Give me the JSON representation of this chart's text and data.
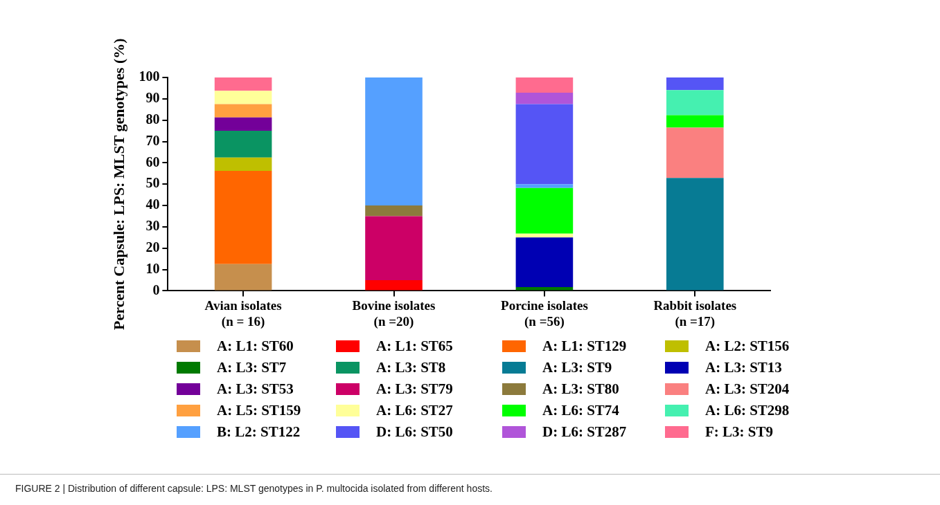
{
  "chart_data": {
    "type": "bar",
    "stacked": true,
    "ylabel": "Percent Capsule: LPS: MLST genotypes (%)",
    "categories": [
      "Avian isolates\n(n = 16)",
      "Bovine isolates\n(n =20)",
      "Porcine isolates\n(n =56)",
      "Rabbit isolates\n(n =17)"
    ],
    "ylim": [
      0,
      100
    ],
    "yticks": [
      0,
      10,
      20,
      30,
      40,
      50,
      60,
      70,
      80,
      90,
      100
    ],
    "grid": false,
    "legend": "bottom",
    "annotations": [
      "FIGURE 2 | Distribution of different capsule: LPS: MLST genotypes in P. multocida isolated from different hosts."
    ],
    "series": [
      {
        "name": "A: L1: ST60",
        "color": "#c68f4d",
        "values": [
          12.5,
          null,
          null,
          null
        ]
      },
      {
        "name": "A: L1: ST65",
        "color": "#ff0000",
        "values": [
          null,
          5,
          null,
          null
        ]
      },
      {
        "name": "A: L1: ST129",
        "color": "#ff6600",
        "values": [
          43.75,
          null,
          null,
          null
        ]
      },
      {
        "name": "A: L2: ST156",
        "color": "#bfbf00",
        "values": [
          6.25,
          null,
          null,
          null
        ]
      },
      {
        "name": "A: L3: ST7",
        "color": "#007a00",
        "values": [
          null,
          null,
          1.79,
          null
        ]
      },
      {
        "name": "A: L3: ST8",
        "color": "#0a9462",
        "values": [
          12.5,
          null,
          null,
          null
        ]
      },
      {
        "name": "A: L3: ST9",
        "color": "#077b94",
        "values": [
          null,
          null,
          null,
          52.94
        ]
      },
      {
        "name": "A: L3: ST13",
        "color": "#0000b3",
        "values": [
          null,
          null,
          23.21,
          null
        ]
      },
      {
        "name": "A: L3: ST53",
        "color": "#730099",
        "values": [
          6.25,
          null,
          null,
          null
        ]
      },
      {
        "name": "A: L3: ST79",
        "color": "#cc0066",
        "values": [
          null,
          30,
          null,
          null
        ]
      },
      {
        "name": "A: L3: ST80",
        "color": "#8c7a3c",
        "values": [
          null,
          5,
          null,
          null
        ]
      },
      {
        "name": "A: L3: ST204",
        "color": "#fa8080",
        "values": [
          null,
          null,
          null,
          23.53
        ]
      },
      {
        "name": "A: L5: ST159",
        "color": "#ffa040",
        "values": [
          6.25,
          null,
          null,
          null
        ]
      },
      {
        "name": "A: L6: ST27",
        "color": "#ffff99",
        "values": [
          6.25,
          null,
          1.79,
          null
        ]
      },
      {
        "name": "A: L6: ST74",
        "color": "#00ff00",
        "values": [
          null,
          null,
          21.43,
          5.88
        ]
      },
      {
        "name": "A: L6: ST298",
        "color": "#45f0b0",
        "values": [
          null,
          null,
          null,
          11.76
        ]
      },
      {
        "name": "B: L2: ST122",
        "color": "#55a0ff",
        "values": [
          null,
          60,
          1.79,
          null
        ]
      },
      {
        "name": "D: L6: ST50",
        "color": "#5555f5",
        "values": [
          null,
          null,
          37.5,
          5.88
        ]
      },
      {
        "name": "D: L6: ST287",
        "color": "#b055d9",
        "values": [
          null,
          null,
          5.36,
          null
        ]
      },
      {
        "name": "F: L3: ST9",
        "color": "#ff6b8f",
        "values": [
          6.25,
          null,
          7.13,
          null
        ]
      }
    ]
  }
}
